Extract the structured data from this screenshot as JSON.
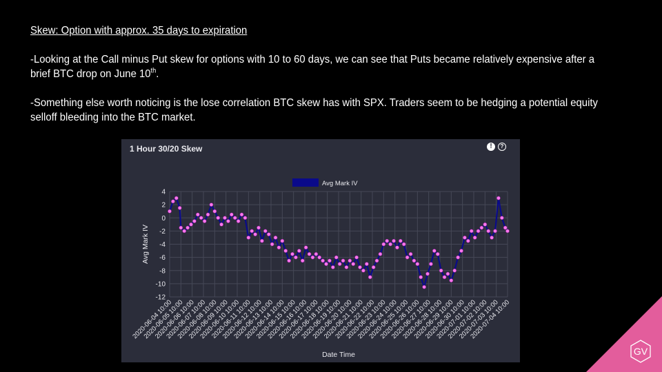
{
  "slide": {
    "heading": "Skew: Option with approx. 35 days to expiration",
    "para1": "-Looking at the Call minus Put skew for options with 10 to 60 days, we can see that Puts became relatively expensive after a brief BTC drop on June 10",
    "para1_sup": "th",
    "para1_end": ".",
    "para2": "-Something else worth noticing is the lose correlation BTC skew has with SPX. Traders seem to be hedging a potential equity selloff bleeding into the BTC market."
  },
  "logo": {
    "text": "GV",
    "color": "#e35d9c"
  },
  "chart_data": {
    "type": "line",
    "title": "1 Hour 30/20 Skew",
    "xlabel": "Date Time",
    "ylabel": "Avg Mark IV",
    "ylim": [
      -12,
      4
    ],
    "yticks": [
      "4",
      "2",
      "0",
      "-2",
      "-4",
      "-6",
      "-8",
      "-10",
      "-12"
    ],
    "grid": true,
    "legend": "top-center",
    "x_tick_labels": [
      "2020-06-04 10:00",
      "2020-06-05 10:00",
      "2020-06-06 10:00",
      "2020-06-07 10:00",
      "2020-06-08 10:00",
      "2020-06-09 10:00",
      "2020-06-10 10:00",
      "2020-06-11 10:00",
      "2020-06-12 10:00",
      "2020-06-13 10:00",
      "2020-06-14 10:00",
      "2020-06-15 10:00",
      "2020-06-16 10:00",
      "2020-06-17 10:00",
      "2020-06-18 10:00",
      "2020-06-19 10:00",
      "2020-06-20 10:00",
      "2020-06-21 10:00",
      "2020-06-22 10:00",
      "2020-06-23 10:00",
      "2020-06-24 10:00",
      "2020-06-25 10:00",
      "2020-06-26 10:00",
      "2020-06-27 10:00",
      "2020-06-28 10:00",
      "2020-06-29 10:00",
      "2020-06-30 10:00",
      "2020-07-01 10:00",
      "2020-07-02 10:00",
      "2020-07-03 10:00",
      "2020-07-04 10:00"
    ],
    "series": [
      {
        "name": "Avg Mark IV",
        "line_color": "#0a0a8a",
        "marker_color": "#ff77ee",
        "points": [
          [
            0,
            1.0
          ],
          [
            0.3,
            2.5
          ],
          [
            0.6,
            3.0
          ],
          [
            0.9,
            1.5
          ],
          [
            1.0,
            -1.5
          ],
          [
            1.3,
            -2.0
          ],
          [
            1.6,
            -1.5
          ],
          [
            1.9,
            -1.0
          ],
          [
            2.2,
            -0.5
          ],
          [
            2.5,
            0.5
          ],
          [
            2.8,
            0.0
          ],
          [
            3.1,
            -0.5
          ],
          [
            3.4,
            0.5
          ],
          [
            3.7,
            2.0
          ],
          [
            4.0,
            1.0
          ],
          [
            4.3,
            0.0
          ],
          [
            4.6,
            -1.0
          ],
          [
            4.9,
            0.0
          ],
          [
            5.2,
            -0.5
          ],
          [
            5.5,
            0.5
          ],
          [
            5.8,
            0.0
          ],
          [
            6.1,
            -0.5
          ],
          [
            6.4,
            0.5
          ],
          [
            6.7,
            0.0
          ],
          [
            7.0,
            -3.0
          ],
          [
            7.3,
            -2.0
          ],
          [
            7.6,
            -2.5
          ],
          [
            7.9,
            -1.5
          ],
          [
            8.2,
            -3.5
          ],
          [
            8.5,
            -2.0
          ],
          [
            8.8,
            -2.5
          ],
          [
            9.1,
            -4.0
          ],
          [
            9.4,
            -3.0
          ],
          [
            9.7,
            -4.5
          ],
          [
            10.0,
            -3.5
          ],
          [
            10.3,
            -5.0
          ],
          [
            10.6,
            -6.5
          ],
          [
            10.9,
            -5.5
          ],
          [
            11.2,
            -6.0
          ],
          [
            11.5,
            -5.0
          ],
          [
            11.8,
            -6.5
          ],
          [
            12.1,
            -4.5
          ],
          [
            12.4,
            -5.5
          ],
          [
            12.7,
            -6.0
          ],
          [
            13.0,
            -5.5
          ],
          [
            13.3,
            -6.0
          ],
          [
            13.6,
            -6.5
          ],
          [
            13.9,
            -7.0
          ],
          [
            14.2,
            -6.5
          ],
          [
            14.5,
            -7.5
          ],
          [
            14.8,
            -6.0
          ],
          [
            15.1,
            -7.0
          ],
          [
            15.4,
            -6.5
          ],
          [
            15.7,
            -7.5
          ],
          [
            16.0,
            -6.5
          ],
          [
            16.3,
            -7.0
          ],
          [
            16.6,
            -6.0
          ],
          [
            16.9,
            -7.5
          ],
          [
            17.2,
            -8.0
          ],
          [
            17.5,
            -7.0
          ],
          [
            17.8,
            -9.0
          ],
          [
            18.1,
            -7.5
          ],
          [
            18.4,
            -6.5
          ],
          [
            18.7,
            -5.5
          ],
          [
            19.0,
            -4.0
          ],
          [
            19.3,
            -3.5
          ],
          [
            19.6,
            -4.0
          ],
          [
            19.9,
            -3.5
          ],
          [
            20.2,
            -4.5
          ],
          [
            20.5,
            -3.5
          ],
          [
            20.8,
            -4.0
          ],
          [
            21.1,
            -6.0
          ],
          [
            21.4,
            -5.5
          ],
          [
            21.7,
            -6.5
          ],
          [
            22.0,
            -7.0
          ],
          [
            22.3,
            -9.0
          ],
          [
            22.6,
            -10.5
          ],
          [
            22.9,
            -8.5
          ],
          [
            23.2,
            -7.0
          ],
          [
            23.5,
            -5.0
          ],
          [
            23.8,
            -5.5
          ],
          [
            24.1,
            -8.0
          ],
          [
            24.4,
            -9.0
          ],
          [
            24.7,
            -8.5
          ],
          [
            25.0,
            -9.5
          ],
          [
            25.3,
            -8.0
          ],
          [
            25.6,
            -6.0
          ],
          [
            25.9,
            -5.0
          ],
          [
            26.2,
            -3.0
          ],
          [
            26.5,
            -3.5
          ],
          [
            26.8,
            -2.0
          ],
          [
            27.1,
            -3.0
          ],
          [
            27.4,
            -2.0
          ],
          [
            27.7,
            -1.5
          ],
          [
            28.0,
            -1.0
          ],
          [
            28.3,
            -2.0
          ],
          [
            28.6,
            -3.0
          ],
          [
            28.9,
            -2.0
          ],
          [
            29.2,
            3.0
          ],
          [
            29.5,
            0.0
          ],
          [
            29.8,
            -1.5
          ],
          [
            30.0,
            -2.0
          ]
        ]
      }
    ]
  }
}
